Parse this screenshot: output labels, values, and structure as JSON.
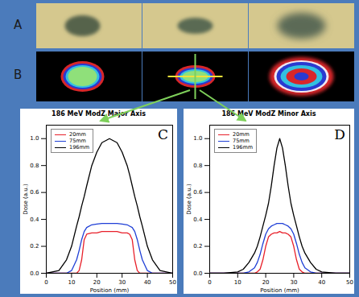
{
  "images": {
    "rows": [
      {
        "label": "A"
      },
      {
        "label": "B"
      }
    ]
  },
  "chart_data": [
    {
      "type": "line",
      "title": "186 MeV ModZ Major Axis",
      "annotations": [
        "C"
      ],
      "x_label": "Position (mm)",
      "y_label": "Dose (a.u.)",
      "xlim": [
        0,
        50
      ],
      "xticks": [
        0,
        10,
        20,
        30,
        40,
        50
      ],
      "ylim": [
        0,
        1.1
      ],
      "yticks": [
        {
          "value": 0,
          "label": "0.0"
        },
        {
          "value": 0.2,
          "label": "0.2"
        },
        {
          "value": 0.4,
          "label": "0.4"
        },
        {
          "value": 0.6,
          "label": "0.6"
        },
        {
          "value": 0.8,
          "label": "0.8"
        },
        {
          "value": 1,
          "label": "1.0"
        }
      ],
      "legend": "upper left",
      "x": [
        0,
        5,
        8,
        10,
        12,
        13,
        14,
        15,
        16,
        18,
        20,
        22,
        25,
        28,
        30,
        32,
        33,
        34,
        35,
        36,
        37,
        38,
        40,
        42,
        45,
        50
      ],
      "series": [
        {
          "name": "20mm",
          "color": "#e8202a",
          "values": [
            0,
            0,
            0,
            0,
            0,
            0.02,
            0.1,
            0.25,
            0.29,
            0.3,
            0.3,
            0.31,
            0.31,
            0.31,
            0.3,
            0.3,
            0.29,
            0.25,
            0.1,
            0.02,
            0,
            0,
            0,
            0,
            0,
            0
          ]
        },
        {
          "name": "75mm",
          "color": "#1f3fd6",
          "values": [
            0,
            0,
            0,
            0.02,
            0.1,
            0.17,
            0.25,
            0.31,
            0.34,
            0.36,
            0.365,
            0.37,
            0.37,
            0.37,
            0.365,
            0.36,
            0.35,
            0.34,
            0.31,
            0.25,
            0.17,
            0.1,
            0.02,
            0,
            0,
            0
          ]
        },
        {
          "name": "196mm",
          "color": "#000000",
          "values": [
            0,
            0.02,
            0.1,
            0.2,
            0.35,
            0.42,
            0.5,
            0.57,
            0.65,
            0.8,
            0.9,
            0.97,
            1.0,
            0.97,
            0.9,
            0.8,
            0.73,
            0.65,
            0.57,
            0.5,
            0.42,
            0.35,
            0.2,
            0.1,
            0.02,
            0
          ]
        }
      ]
    },
    {
      "type": "line",
      "title": "186 MeV ModZ Minor Axis",
      "annotations": [
        "D"
      ],
      "x_label": "Position (mm)",
      "y_label": "Dose (a.u.)",
      "xlim": [
        0,
        50
      ],
      "xticks": [
        0,
        10,
        20,
        30,
        40,
        50
      ],
      "ylim": [
        0,
        1.1
      ],
      "yticks": [
        {
          "value": 0,
          "label": "0.0"
        },
        {
          "value": 0.2,
          "label": "0.2"
        },
        {
          "value": 0.4,
          "label": "0.4"
        },
        {
          "value": 0.6,
          "label": "0.6"
        },
        {
          "value": 0.8,
          "label": "0.8"
        },
        {
          "value": 1,
          "label": "1.0"
        }
      ],
      "legend": "upper left",
      "x": [
        0,
        5,
        10,
        12,
        14,
        16,
        17,
        18,
        19,
        20,
        21,
        22,
        23,
        24,
        25,
        26,
        27,
        28,
        29,
        30,
        31,
        32,
        33,
        34,
        36,
        38,
        40,
        45,
        50
      ],
      "series": [
        {
          "name": "20mm",
          "color": "#e8202a",
          "values": [
            0,
            0,
            0,
            0,
            0,
            0,
            0.01,
            0.03,
            0.1,
            0.2,
            0.27,
            0.29,
            0.3,
            0.3,
            0.31,
            0.3,
            0.3,
            0.29,
            0.27,
            0.2,
            0.1,
            0.03,
            0.01,
            0,
            0,
            0,
            0,
            0,
            0
          ]
        },
        {
          "name": "75mm",
          "color": "#1f3fd6",
          "values": [
            0,
            0,
            0,
            0,
            0.01,
            0.04,
            0.08,
            0.14,
            0.22,
            0.29,
            0.33,
            0.35,
            0.36,
            0.37,
            0.37,
            0.37,
            0.36,
            0.35,
            0.33,
            0.29,
            0.22,
            0.14,
            0.08,
            0.04,
            0.01,
            0,
            0,
            0,
            0
          ]
        },
        {
          "name": "196mm",
          "color": "#000000",
          "values": [
            0,
            0,
            0.01,
            0.03,
            0.08,
            0.15,
            0.2,
            0.27,
            0.35,
            0.43,
            0.52,
            0.65,
            0.8,
            0.93,
            1.0,
            0.93,
            0.8,
            0.65,
            0.52,
            0.43,
            0.35,
            0.27,
            0.2,
            0.15,
            0.08,
            0.03,
            0.01,
            0,
            0
          ]
        }
      ]
    }
  ]
}
